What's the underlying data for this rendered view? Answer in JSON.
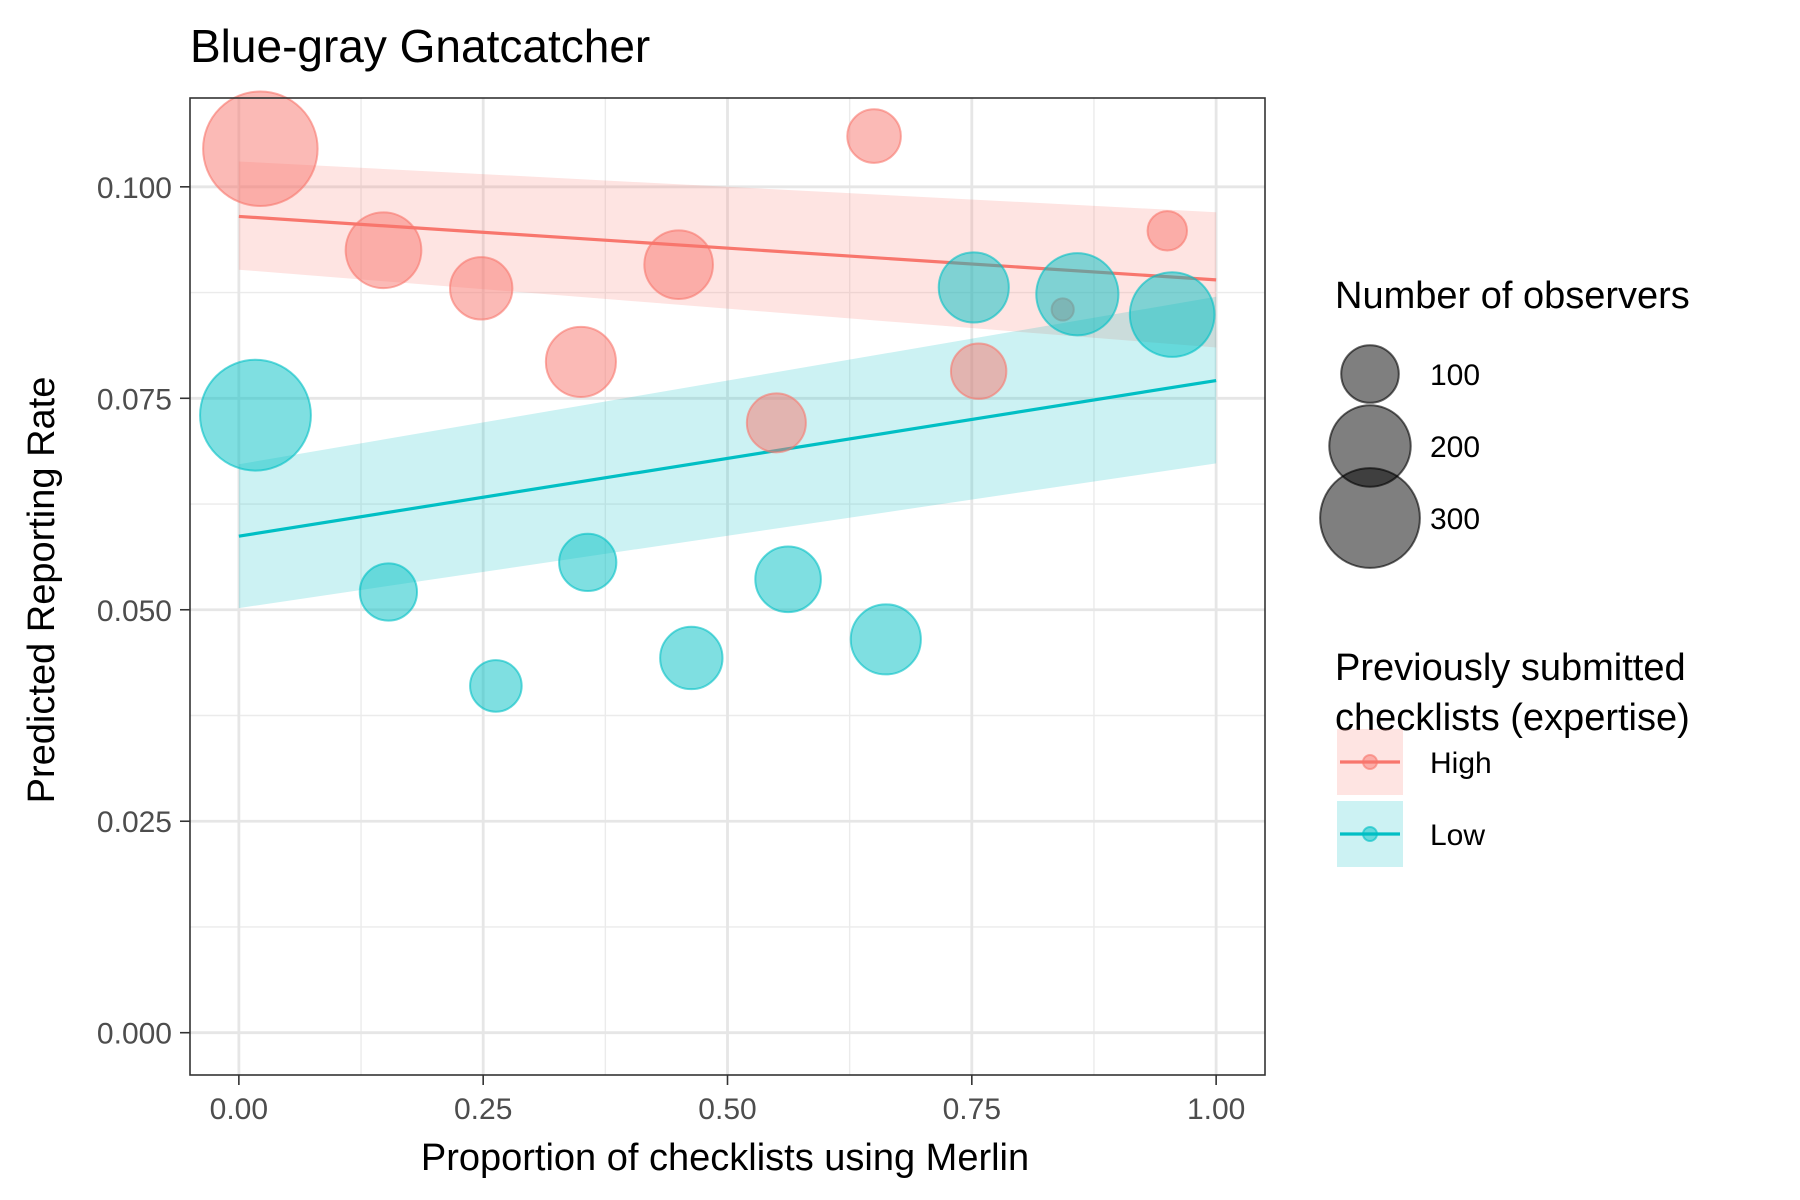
{
  "chart_data": {
    "type": "scatter",
    "title": "Blue-gray Gnatcatcher",
    "xlabel": "Proportion of checklists using Merlin",
    "ylabel": "Predicted Reporting Rate",
    "xlim": [
      -0.05,
      1.05
    ],
    "ylim": [
      -0.005,
      0.1105
    ],
    "x_ticks": [
      0.0,
      0.25,
      0.5,
      0.75,
      1.0
    ],
    "x_tick_labels": [
      "0.00",
      "0.25",
      "0.50",
      "0.75",
      "1.00"
    ],
    "y_ticks": [
      0.0,
      0.025,
      0.05,
      0.075,
      0.1
    ],
    "y_tick_labels": [
      "0.000",
      "0.025",
      "0.050",
      "0.075",
      "0.100"
    ],
    "grid": true,
    "legend_position": "right",
    "size_legend": {
      "title": "Number of observers",
      "entries": [
        {
          "label": "100",
          "value": 100
        },
        {
          "label": "200",
          "value": 200
        },
        {
          "label": "300",
          "value": 300
        }
      ]
    },
    "color_legend": {
      "title_lines": [
        "Previously submitted",
        "checklists (expertise)"
      ]
    },
    "series": [
      {
        "name": "High",
        "color": "#F8766D",
        "points": [
          {
            "x": 0.022,
            "y": 0.1045,
            "n": 320
          },
          {
            "x": 0.148,
            "y": 0.0925,
            "n": 140
          },
          {
            "x": 0.248,
            "y": 0.088,
            "n": 95
          },
          {
            "x": 0.35,
            "y": 0.0793,
            "n": 120
          },
          {
            "x": 0.45,
            "y": 0.0908,
            "n": 115
          },
          {
            "x": 0.55,
            "y": 0.0721,
            "n": 85
          },
          {
            "x": 0.65,
            "y": 0.106,
            "n": 70
          },
          {
            "x": 0.757,
            "y": 0.0782,
            "n": 75
          },
          {
            "x": 0.843,
            "y": 0.0855,
            "n": 12
          },
          {
            "x": 0.95,
            "y": 0.0948,
            "n": 38
          }
        ],
        "trend": {
          "x": [
            0.0,
            1.0
          ],
          "y": [
            0.0965,
            0.089
          ]
        },
        "band": {
          "x": [
            0.0,
            1.0
          ],
          "lower": [
            0.0902,
            0.081
          ],
          "upper": [
            0.103,
            0.097
          ]
        }
      },
      {
        "name": "Low",
        "color": "#00BFC4",
        "points": [
          {
            "x": 0.017,
            "y": 0.073,
            "n": 300
          },
          {
            "x": 0.153,
            "y": 0.0521,
            "n": 80
          },
          {
            "x": 0.263,
            "y": 0.041,
            "n": 65
          },
          {
            "x": 0.357,
            "y": 0.0556,
            "n": 80
          },
          {
            "x": 0.463,
            "y": 0.0443,
            "n": 95
          },
          {
            "x": 0.562,
            "y": 0.0536,
            "n": 105
          },
          {
            "x": 0.662,
            "y": 0.0465,
            "n": 120
          },
          {
            "x": 0.752,
            "y": 0.0881,
            "n": 120
          },
          {
            "x": 0.858,
            "y": 0.0873,
            "n": 165
          },
          {
            "x": 0.955,
            "y": 0.0849,
            "n": 175
          }
        ],
        "trend": {
          "x": [
            0.0,
            1.0
          ],
          "y": [
            0.0587,
            0.0771
          ]
        },
        "band": {
          "x": [
            0.0,
            1.0
          ],
          "lower": [
            0.0502,
            0.0673
          ],
          "upper": [
            0.0672,
            0.087
          ]
        }
      }
    ]
  }
}
